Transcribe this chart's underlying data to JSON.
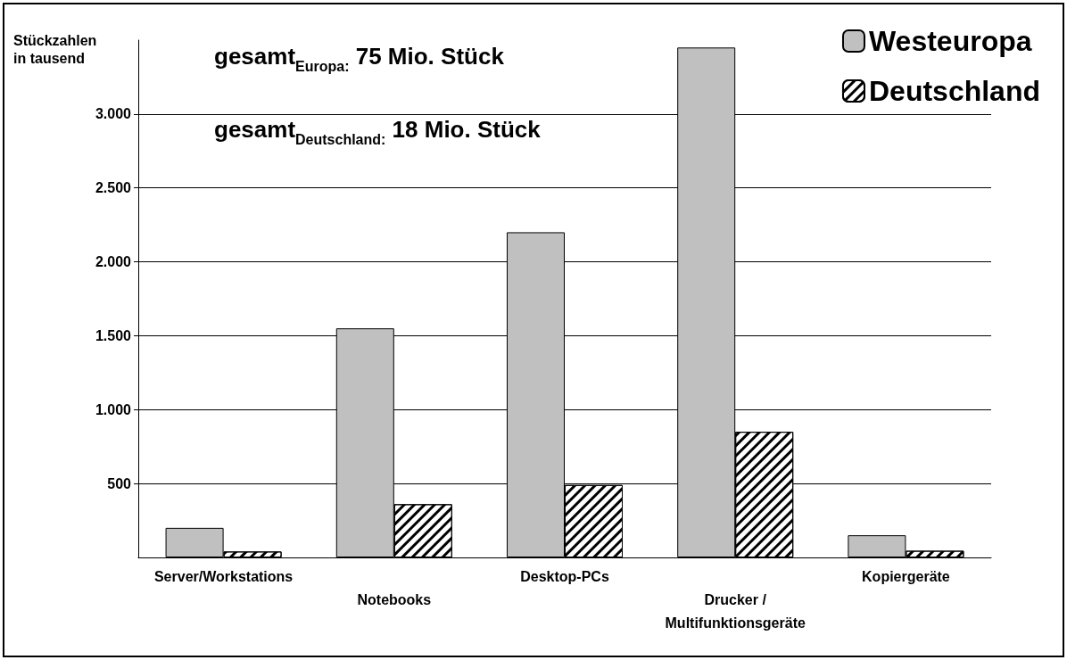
{
  "chart_data": {
    "type": "bar",
    "ylabel": "Stückzahlen in tausend",
    "categories": [
      "Server/Workstations",
      "Notebooks",
      "Desktop-PCs",
      "Drucker / Multifunktionsgeräte",
      "Kopiergeräte"
    ],
    "series": [
      {
        "name": "Westeuropa",
        "color": "#c0c0c0",
        "values": [
          200,
          1550,
          2200,
          3450,
          150
        ]
      },
      {
        "name": "Deutschland",
        "color": "#ffffff",
        "values": [
          40,
          360,
          490,
          850,
          45
        ]
      }
    ],
    "ylim": [
      0,
      3500
    ],
    "yticks": [
      {
        "value": 500,
        "label": "500"
      },
      {
        "value": 1000,
        "label": "1.000"
      },
      {
        "value": 1500,
        "label": "1.500"
      },
      {
        "value": 2000,
        "label": "2.000"
      },
      {
        "value": 2500,
        "label": "2.500"
      },
      {
        "value": 3000,
        "label": "3.000"
      }
    ],
    "annotations": [
      "gesamt$_{Europa:}$ 75 Mio. Stück",
      "gesamt$_{Deutschland:}$ 18 Mio. Stück"
    ],
    "grid": "y",
    "legend": "top right"
  }
}
